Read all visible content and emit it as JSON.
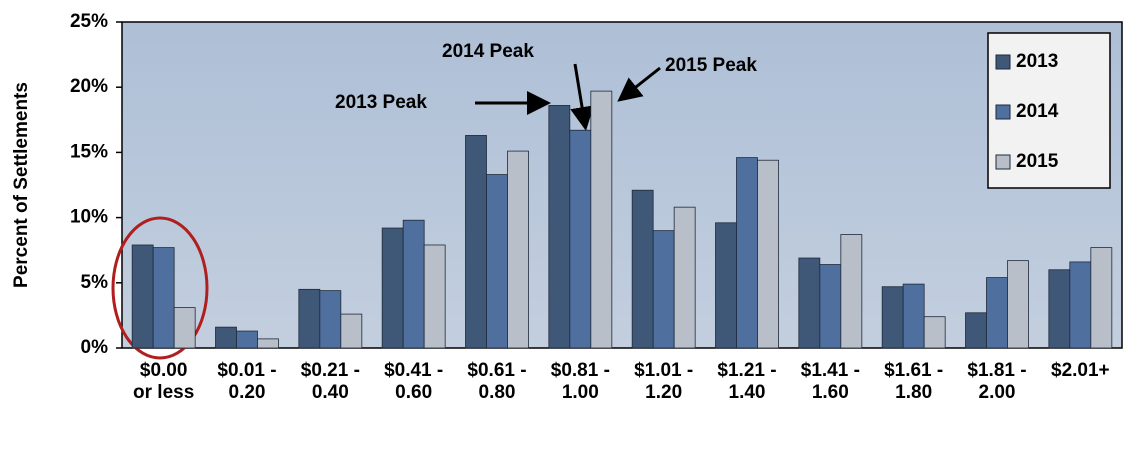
{
  "chart_data": {
    "type": "bar",
    "y_label": "Percent of Settlements",
    "categories": [
      "$0.00 or less",
      "$0.01 - 0.20",
      "$0.21 - 0.40",
      "$0.41 - 0.60",
      "$0.61 - 0.80",
      "$0.81 - 1.00",
      "$1.01 - 1.20",
      "$1.21 - 1.40",
      "$1.41 - 1.60",
      "$1.61 - 1.80",
      "$1.81 - 2.00",
      "$2.01+"
    ],
    "series": [
      {
        "name": "2013",
        "color": "#3f5878",
        "values": [
          7.9,
          1.6,
          4.5,
          9.2,
          16.3,
          18.6,
          12.1,
          9.6,
          6.9,
          4.7,
          2.7,
          6.0
        ]
      },
      {
        "name": "2014",
        "color": "#4f6f9f",
        "values": [
          7.7,
          1.3,
          4.4,
          9.8,
          13.3,
          16.7,
          9.0,
          14.6,
          6.4,
          4.9,
          5.4,
          6.6
        ]
      },
      {
        "name": "2015",
        "color": "#b9bfc9",
        "values": [
          3.1,
          0.7,
          2.6,
          7.9,
          15.1,
          19.7,
          10.8,
          14.4,
          8.7,
          2.4,
          6.7,
          7.7
        ]
      }
    ],
    "ylim": [
      0,
      25
    ],
    "yticks": [
      {
        "value": 0,
        "label": "0%"
      },
      {
        "value": 5,
        "label": "5%"
      },
      {
        "value": 10,
        "label": "10%"
      },
      {
        "value": 15,
        "label": "15%"
      },
      {
        "value": 20,
        "label": "20%"
      },
      {
        "value": 25,
        "label": "25%"
      }
    ],
    "grid": false,
    "legend": "top-right",
    "annotations": [
      "2013 Peak",
      "2014 Peak",
      "2015 Peak"
    ]
  }
}
